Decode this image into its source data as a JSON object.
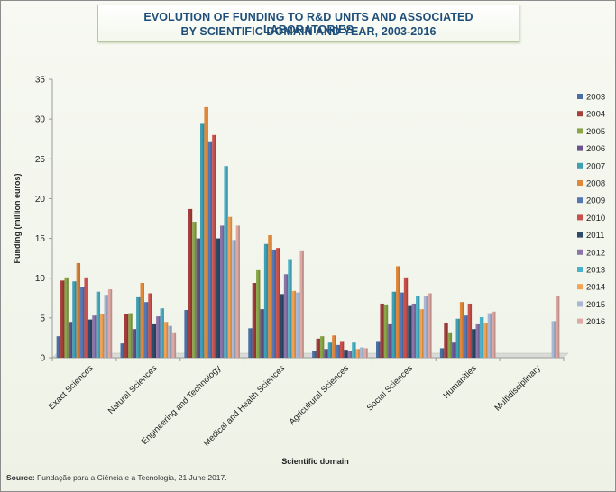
{
  "chart_data": {
    "type": "bar",
    "title": "EVOLUTION OF FUNDING TO R&D UNITS AND ASSOCIATED LABORATORIES",
    "subtitle": "BY SCIENTIFIC DOMAIN AND YEAR, 2003-2016",
    "xlabel": "Scientific domain",
    "ylabel": "Funding (million euros)",
    "ylim": [
      0,
      35
    ],
    "yticks": [
      "0",
      "5",
      "10",
      "15",
      "20",
      "25",
      "30",
      "35"
    ],
    "grid": false,
    "legend_position": "right",
    "categories": [
      "Exact Sciences",
      "Natural Sciences",
      "Engineering and Technology",
      "Medical and Health Sciences",
      "Agricultural Sciences",
      "Social Sciences",
      "Humanities",
      "Multidisciplinary"
    ],
    "series": [
      {
        "name": "2003",
        "color": "#4a6fa5",
        "values": [
          2.7,
          1.8,
          6.0,
          3.7,
          0.8,
          2.1,
          1.2,
          0
        ]
      },
      {
        "name": "2004",
        "color": "#a53f3c",
        "values": [
          9.7,
          5.5,
          18.7,
          9.4,
          2.4,
          6.8,
          4.4,
          0
        ]
      },
      {
        "name": "2005",
        "color": "#8aa54a",
        "values": [
          10.1,
          5.6,
          17.1,
          11.0,
          2.7,
          6.7,
          3.2,
          0
        ]
      },
      {
        "name": "2006",
        "color": "#6a5490",
        "values": [
          4.5,
          3.6,
          15.0,
          6.1,
          1.1,
          4.2,
          1.9,
          0
        ]
      },
      {
        "name": "2007",
        "color": "#3f9fb5",
        "values": [
          9.6,
          7.6,
          29.4,
          14.3,
          1.9,
          8.3,
          4.9,
          0
        ]
      },
      {
        "name": "2008",
        "color": "#e0883a",
        "values": [
          11.9,
          9.4,
          31.5,
          15.4,
          2.8,
          11.5,
          7.0,
          0
        ]
      },
      {
        "name": "2009",
        "color": "#5578b5",
        "values": [
          8.9,
          7.0,
          27.1,
          13.6,
          1.6,
          8.2,
          5.3,
          0
        ]
      },
      {
        "name": "2010",
        "color": "#c9504c",
        "values": [
          10.1,
          8.1,
          28.0,
          13.8,
          2.1,
          10.1,
          6.8,
          0
        ]
      },
      {
        "name": "2011",
        "color": "#2e4a6a",
        "values": [
          4.8,
          4.2,
          15.0,
          8.0,
          1.0,
          6.5,
          3.6,
          0
        ]
      },
      {
        "name": "2012",
        "color": "#8b74aa",
        "values": [
          5.3,
          5.2,
          16.6,
          10.5,
          0.8,
          6.8,
          4.2,
          0
        ]
      },
      {
        "name": "2013",
        "color": "#4bb3c9",
        "values": [
          8.3,
          6.2,
          24.1,
          12.4,
          1.9,
          7.7,
          5.1,
          0
        ]
      },
      {
        "name": "2014",
        "color": "#f2a155",
        "values": [
          5.5,
          4.5,
          17.7,
          8.4,
          1.1,
          6.1,
          4.3,
          0
        ]
      },
      {
        "name": "2015",
        "color": "#a8b8d4",
        "values": [
          7.9,
          4.0,
          14.8,
          8.2,
          1.3,
          7.7,
          5.6,
          4.6
        ]
      },
      {
        "name": "2016",
        "color": "#dea8a4",
        "values": [
          8.6,
          3.2,
          16.6,
          13.5,
          1.2,
          8.1,
          5.8,
          7.7
        ]
      }
    ]
  },
  "source": {
    "label": "Source:",
    "text": " Fundação para a Ciência e a Tecnologia, 21 June 2017."
  }
}
